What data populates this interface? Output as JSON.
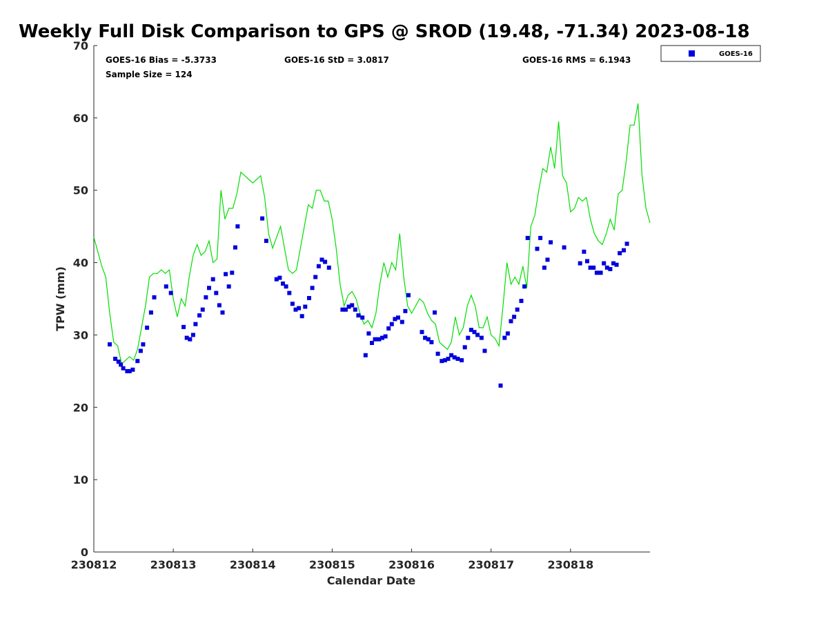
{
  "chart_data": {
    "type": "scatter",
    "title": "Weekly Full Disk Comparison to GPS @ SROD (19.48, -71.34) 2023-08-18",
    "xlabel": "Calendar Date",
    "ylabel": "TPW (mm)",
    "xlim": [
      0,
      7
    ],
    "ylim": [
      0,
      70
    ],
    "x_ticks": [
      0,
      1,
      2,
      3,
      4,
      5,
      6
    ],
    "x_tick_labels": [
      "230812",
      "230813",
      "230814",
      "230815",
      "230816",
      "230817",
      "230818"
    ],
    "y_ticks": [
      0,
      10,
      20,
      30,
      40,
      50,
      60,
      70
    ],
    "y_tick_labels": [
      "0",
      "10",
      "20",
      "30",
      "40",
      "50",
      "60",
      "70"
    ],
    "stats": {
      "bias": "GOES-16 Bias = -5.3733",
      "std": "GOES-16 StD = 3.0817",
      "rms": "GOES-16 RMS = 6.1943",
      "sample": "Sample Size = 124"
    },
    "legend": {
      "label": "GOES-16",
      "placement": "top-right outside"
    },
    "colors": {
      "goes": "#0000dd",
      "gps": "#00dd00",
      "axis": "#262626"
    },
    "gps_series": {
      "name": "GPS",
      "x": [
        0.0,
        0.05,
        0.1,
        0.15,
        0.2,
        0.25,
        0.3,
        0.35,
        0.4,
        0.45,
        0.5,
        0.55,
        0.6,
        0.65,
        0.7,
        0.75,
        0.8,
        0.85,
        0.9,
        0.95,
        1.0,
        1.05,
        1.1,
        1.15,
        1.2,
        1.25,
        1.3,
        1.35,
        1.4,
        1.45,
        1.5,
        1.55,
        1.6,
        1.65,
        1.7,
        1.75,
        1.8,
        1.85,
        1.9,
        1.95,
        2.0,
        2.05,
        2.1,
        2.15,
        2.2,
        2.25,
        2.3,
        2.35,
        2.4,
        2.45,
        2.5,
        2.55,
        2.6,
        2.65,
        2.7,
        2.75,
        2.8,
        2.85,
        2.9,
        2.95,
        3.0,
        3.05,
        3.1,
        3.15,
        3.2,
        3.25,
        3.3,
        3.35,
        3.4,
        3.45,
        3.5,
        3.55,
        3.6,
        3.65,
        3.7,
        3.75,
        3.8,
        3.85,
        3.9,
        3.95,
        4.0,
        4.05,
        4.1,
        4.15,
        4.2,
        4.25,
        4.3,
        4.35,
        4.4,
        4.45,
        4.5,
        4.55,
        4.6,
        4.65,
        4.7,
        4.75,
        4.8,
        4.85,
        4.9,
        4.95,
        5.0,
        5.05,
        5.1,
        5.15,
        5.2,
        5.25,
        5.3,
        5.35,
        5.4,
        5.45,
        5.5,
        5.55,
        5.6,
        5.65,
        5.7,
        5.75,
        5.8,
        5.85,
        5.9,
        5.95,
        6.0,
        6.05,
        6.1,
        6.15,
        6.2,
        6.25,
        6.3,
        6.35,
        6.4,
        6.45,
        6.5,
        6.55,
        6.6,
        6.65,
        6.7,
        6.75,
        6.8,
        6.85,
        6.9,
        6.95,
        7.0
      ],
      "values": [
        43.5,
        41.5,
        39.5,
        38.0,
        33.0,
        29.0,
        28.5,
        26.0,
        26.5,
        27.0,
        26.5,
        28.0,
        31.0,
        34.0,
        38.0,
        38.5,
        38.5,
        39.0,
        38.5,
        39.0,
        35.0,
        32.5,
        35.0,
        34.0,
        38.0,
        41.0,
        42.5,
        41.0,
        41.5,
        43.0,
        40.0,
        40.5,
        50.0,
        46.0,
        47.5,
        47.5,
        49.5,
        52.5,
        52.0,
        51.5,
        51.0,
        51.5,
        52.0,
        49.0,
        44.0,
        42.0,
        43.5,
        45.0,
        42.0,
        39.0,
        38.5,
        39.0,
        42.0,
        45.0,
        48.0,
        47.5,
        50.0,
        50.0,
        48.5,
        48.5,
        46.0,
        42.0,
        37.0,
        34.0,
        35.5,
        36.0,
        35.0,
        33.0,
        31.5,
        32.0,
        31.0,
        33.0,
        37.0,
        40.0,
        38.0,
        40.0,
        39.0,
        44.0,
        38.0,
        34.0,
        33.0,
        34.0,
        35.0,
        34.5,
        33.0,
        32.0,
        31.5,
        29.0,
        28.5,
        28.0,
        29.0,
        32.5,
        30.0,
        31.0,
        34.0,
        35.5,
        34.0,
        31.0,
        31.0,
        32.5,
        30.0,
        29.5,
        28.5,
        34.0,
        40.0,
        37.0,
        38.0,
        37.0,
        39.5,
        36.5,
        45.0,
        46.5,
        50.0,
        53.0,
        52.5,
        56.0,
        53.0,
        59.5,
        52.0,
        51.0,
        47.0,
        47.5,
        49.0,
        48.5,
        49.0,
        46.0,
        44.0,
        43.0,
        42.5,
        44.0,
        46.0,
        44.5,
        49.5,
        50.0,
        54.0,
        59.0,
        59.0,
        62.0,
        52.0,
        47.5,
        45.5
      ]
    },
    "series": [
      {
        "name": "GOES-16",
        "x": [
          0.2,
          0.27,
          0.31,
          0.34,
          0.37,
          0.42,
          0.45,
          0.49,
          0.55,
          0.59,
          0.62,
          0.67,
          0.72,
          0.76,
          0.91,
          0.97,
          1.13,
          1.17,
          1.21,
          1.25,
          1.28,
          1.33,
          1.37,
          1.41,
          1.45,
          1.5,
          1.54,
          1.58,
          1.62,
          1.66,
          1.7,
          1.74,
          1.78,
          1.81,
          2.12,
          2.17,
          2.3,
          2.34,
          2.38,
          2.42,
          2.46,
          2.5,
          2.54,
          2.58,
          2.62,
          2.66,
          2.71,
          2.75,
          2.79,
          2.83,
          2.87,
          2.91,
          2.96,
          3.13,
          3.17,
          3.21,
          3.25,
          3.29,
          3.33,
          3.38,
          3.42,
          3.46,
          3.5,
          3.54,
          3.59,
          3.63,
          3.67,
          3.71,
          3.75,
          3.79,
          3.83,
          3.88,
          3.92,
          3.96,
          4.13,
          4.17,
          4.21,
          4.25,
          4.29,
          4.33,
          4.38,
          4.42,
          4.46,
          4.5,
          4.54,
          4.58,
          4.63,
          4.67,
          4.71,
          4.75,
          4.79,
          4.83,
          4.88,
          4.92,
          5.12,
          5.17,
          5.21,
          5.25,
          5.29,
          5.33,
          5.38,
          5.42,
          5.46,
          5.58,
          5.62,
          5.67,
          5.71,
          5.75,
          5.92,
          6.12,
          6.17,
          6.21,
          6.25,
          6.29,
          6.33,
          6.38,
          6.42,
          6.46,
          6.5,
          6.54,
          6.58,
          6.62,
          6.67,
          6.71
        ],
        "values": [
          28.7,
          26.7,
          26.3,
          25.9,
          25.4,
          25.0,
          25.0,
          25.2,
          26.4,
          27.8,
          28.7,
          31.0,
          33.1,
          35.2,
          36.7,
          35.8,
          31.1,
          29.6,
          29.4,
          30.0,
          31.5,
          32.7,
          33.5,
          35.2,
          36.5,
          37.7,
          35.8,
          34.1,
          33.1,
          38.4,
          36.7,
          38.6,
          42.1,
          45.0,
          46.1,
          43.0,
          37.7,
          37.9,
          37.1,
          36.7,
          35.8,
          34.3,
          33.5,
          33.7,
          32.6,
          33.9,
          35.1,
          36.5,
          38.0,
          39.5,
          40.4,
          40.1,
          39.3,
          33.5,
          33.5,
          33.9,
          34.1,
          33.5,
          32.7,
          32.4,
          27.2,
          30.2,
          28.9,
          29.4,
          29.4,
          29.6,
          29.8,
          30.9,
          31.5,
          32.2,
          32.4,
          31.8,
          33.3,
          35.5,
          30.4,
          29.6,
          29.4,
          29.0,
          33.1,
          27.4,
          26.4,
          26.5,
          26.7,
          27.2,
          26.9,
          26.7,
          26.5,
          28.3,
          29.6,
          30.7,
          30.4,
          30.0,
          29.6,
          27.8,
          23.0,
          29.6,
          30.2,
          31.9,
          32.5,
          33.5,
          34.7,
          36.7,
          43.4,
          41.9,
          43.4,
          39.3,
          40.4,
          42.8,
          42.1,
          39.9,
          41.5,
          40.2,
          39.3,
          39.3,
          38.6,
          38.6,
          39.9,
          39.3,
          39.1,
          39.9,
          39.7,
          41.3,
          41.7,
          42.6
        ]
      }
    ]
  }
}
